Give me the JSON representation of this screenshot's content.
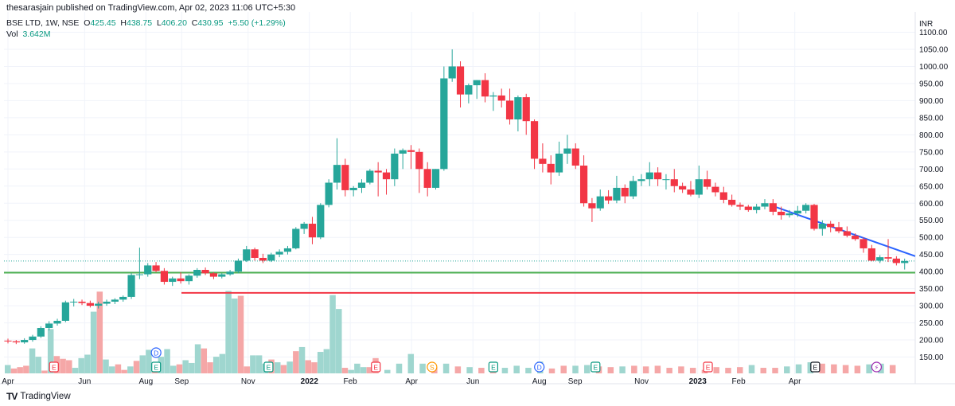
{
  "publisher_line": "thesarasjain published on TradingView.com, Apr 02, 2023 11:06 UTC+5:30",
  "legend": {
    "symbol": "BSE LTD, 1W, NSE",
    "O": "425.45",
    "H": "438.75",
    "L": "406.20",
    "C": "430.95",
    "change": "+5.50 (+1.29%)",
    "vol_label": "Vol",
    "vol_value": "3.642M"
  },
  "footer": {
    "logo": "TV",
    "brand": "TradingView"
  },
  "colors": {
    "up": "#26a69a",
    "down": "#f23645",
    "upVol": "#9fd6cf",
    "downVol": "#f5a7a7",
    "support": "#4caf50",
    "resistance": "#f23645",
    "trend": "#2962ff"
  },
  "chart_data": {
    "type": "candlestick",
    "currency_label": "INR",
    "y_ticks": [
      "1100.00",
      "1050.00",
      "1000.00",
      "950.00",
      "900.00",
      "850.00",
      "800.00",
      "750.00",
      "700.00",
      "650.00",
      "600.00",
      "550.00",
      "500.00",
      "450.00",
      "400.00",
      "350.00",
      "300.00",
      "250.00",
      "200.00",
      "150.00"
    ],
    "ylim": [
      130,
      1110
    ],
    "x_labels": [
      "Apr",
      "Jun",
      "Aug",
      "Sep",
      "Nov",
      "2022",
      "Feb",
      "Apr",
      "Jun",
      "Aug",
      "Sep",
      "Nov",
      "2023",
      "Feb",
      "Apr"
    ],
    "x_label_weeks": [
      0,
      15,
      27,
      34,
      47,
      59,
      67,
      79,
      91,
      104,
      111,
      124,
      135,
      143,
      154
    ],
    "candles": [
      [
        198,
        204,
        190,
        196
      ],
      [
        196,
        200,
        188,
        193
      ],
      [
        193,
        205,
        189,
        200
      ],
      [
        200,
        215,
        195,
        210
      ],
      [
        210,
        240,
        206,
        235
      ],
      [
        235,
        255,
        228,
        248
      ],
      [
        248,
        262,
        242,
        256
      ],
      [
        256,
        315,
        252,
        310
      ],
      [
        310,
        320,
        298,
        312
      ],
      [
        312,
        318,
        302,
        308
      ],
      [
        308,
        315,
        295,
        300
      ],
      [
        300,
        312,
        292,
        306
      ],
      [
        306,
        318,
        300,
        312
      ],
      [
        312,
        322,
        305,
        318
      ],
      [
        318,
        330,
        312,
        326
      ],
      [
        326,
        395,
        320,
        390
      ],
      [
        390,
        470,
        378,
        392
      ],
      [
        392,
        425,
        385,
        418
      ],
      [
        418,
        428,
        398,
        402
      ],
      [
        402,
        410,
        362,
        370
      ],
      [
        370,
        385,
        358,
        380
      ],
      [
        380,
        398,
        365,
        372
      ],
      [
        372,
        392,
        362,
        388
      ],
      [
        388,
        410,
        382,
        405
      ],
      [
        405,
        412,
        390,
        395
      ],
      [
        395,
        398,
        378,
        385
      ],
      [
        385,
        395,
        380,
        392
      ],
      [
        392,
        405,
        388,
        400
      ],
      [
        400,
        438,
        395,
        432
      ],
      [
        432,
        475,
        428,
        465
      ],
      [
        465,
        470,
        432,
        440
      ],
      [
        440,
        452,
        425,
        432
      ],
      [
        432,
        455,
        428,
        450
      ],
      [
        450,
        465,
        442,
        458
      ],
      [
        458,
        475,
        450,
        468
      ],
      [
        468,
        530,
        465,
        525
      ],
      [
        525,
        545,
        510,
        540
      ],
      [
        540,
        560,
        480,
        500
      ],
      [
        500,
        600,
        495,
        595
      ],
      [
        595,
        670,
        588,
        660
      ],
      [
        660,
        790,
        640,
        712
      ],
      [
        712,
        730,
        620,
        638
      ],
      [
        638,
        650,
        620,
        645
      ],
      [
        645,
        670,
        630,
        660
      ],
      [
        660,
        700,
        655,
        695
      ],
      [
        695,
        720,
        620,
        690
      ],
      [
        690,
        700,
        625,
        670
      ],
      [
        670,
        760,
        650,
        745
      ],
      [
        745,
        760,
        700,
        755
      ],
      [
        755,
        770,
        700,
        750
      ],
      [
        750,
        760,
        630,
        700
      ],
      [
        700,
        720,
        620,
        645
      ],
      [
        645,
        700,
        640,
        700
      ],
      [
        700,
        1000,
        695,
        965
      ],
      [
        965,
        1050,
        955,
        1000
      ],
      [
        1000,
        1015,
        880,
        918
      ],
      [
        918,
        950,
        892,
        945
      ],
      [
        945,
        960,
        905,
        960
      ],
      [
        960,
        980,
        895,
        912
      ],
      [
        912,
        925,
        870,
        915
      ],
      [
        915,
        935,
        880,
        900
      ],
      [
        900,
        935,
        830,
        845
      ],
      [
        845,
        915,
        810,
        910
      ],
      [
        910,
        920,
        800,
        840
      ],
      [
        840,
        845,
        700,
        730
      ],
      [
        730,
        775,
        690,
        715
      ],
      [
        715,
        740,
        655,
        690
      ],
      [
        690,
        780,
        680,
        745
      ],
      [
        745,
        800,
        715,
        760
      ],
      [
        760,
        775,
        700,
        710
      ],
      [
        710,
        740,
        590,
        600
      ],
      [
        600,
        615,
        545,
        585
      ],
      [
        585,
        640,
        578,
        620
      ],
      [
        620,
        638,
        598,
        608
      ],
      [
        608,
        680,
        600,
        645
      ],
      [
        645,
        655,
        600,
        620
      ],
      [
        620,
        680,
        612,
        665
      ],
      [
        665,
        685,
        650,
        670
      ],
      [
        670,
        720,
        650,
        690
      ],
      [
        690,
        705,
        650,
        670
      ],
      [
        670,
        685,
        640,
        670
      ],
      [
        670,
        700,
        632,
        650
      ],
      [
        650,
        660,
        630,
        640
      ],
      [
        640,
        665,
        620,
        625
      ],
      [
        625,
        710,
        615,
        670
      ],
      [
        670,
        695,
        640,
        648
      ],
      [
        648,
        660,
        620,
        632
      ],
      [
        632,
        648,
        600,
        610
      ],
      [
        610,
        625,
        590,
        595
      ],
      [
        595,
        602,
        580,
        590
      ],
      [
        590,
        595,
        575,
        580
      ],
      [
        580,
        598,
        570,
        590
      ],
      [
        590,
        612,
        582,
        600
      ],
      [
        600,
        612,
        565,
        575
      ],
      [
        575,
        590,
        552,
        565
      ],
      [
        565,
        580,
        558,
        570
      ],
      [
        570,
        592,
        560,
        578
      ],
      [
        578,
        600,
        570,
        595
      ],
      [
        595,
        598,
        520,
        525
      ],
      [
        525,
        550,
        505,
        540
      ],
      [
        540,
        548,
        515,
        530
      ],
      [
        530,
        545,
        512,
        518
      ],
      [
        518,
        532,
        500,
        505
      ],
      [
        505,
        512,
        490,
        495
      ],
      [
        495,
        500,
        455,
        468
      ],
      [
        468,
        478,
        430,
        432
      ],
      [
        432,
        448,
        425,
        442
      ],
      [
        442,
        495,
        428,
        438
      ],
      [
        438,
        445,
        418,
        425
      ],
      [
        425,
        438,
        406,
        430.95
      ]
    ],
    "volume": [
      [
        1,
        12
      ],
      [
        0,
        7
      ],
      [
        0,
        9
      ],
      [
        0,
        11
      ],
      [
        1,
        36
      ],
      [
        1,
        24
      ],
      [
        0,
        4
      ],
      [
        1,
        64
      ],
      [
        0,
        25
      ],
      [
        0,
        21
      ],
      [
        0,
        19
      ],
      [
        1,
        8
      ],
      [
        1,
        22
      ],
      [
        1,
        27
      ],
      [
        1,
        89
      ],
      [
        0,
        118
      ],
      [
        1,
        20
      ],
      [
        1,
        10
      ],
      [
        0,
        13
      ],
      [
        0,
        5
      ],
      [
        1,
        10
      ],
      [
        0,
        18
      ],
      [
        1,
        26
      ],
      [
        1,
        34
      ],
      [
        0,
        12
      ],
      [
        1,
        24
      ],
      [
        1,
        35
      ],
      [
        1,
        11
      ],
      [
        0,
        13
      ],
      [
        1,
        19
      ],
      [
        1,
        15
      ],
      [
        1,
        42
      ],
      [
        0,
        36
      ],
      [
        0,
        16
      ],
      [
        1,
        24
      ],
      [
        1,
        28
      ],
      [
        1,
        119
      ],
      [
        1,
        108
      ],
      [
        0,
        112
      ],
      [
        0,
        10
      ],
      [
        1,
        26
      ],
      [
        1,
        26
      ],
      [
        1,
        14
      ],
      [
        0,
        20
      ],
      [
        1,
        16
      ],
      [
        0,
        12
      ],
      [
        1,
        17
      ],
      [
        0,
        32
      ],
      [
        1,
        38
      ],
      [
        0,
        19
      ],
      [
        0,
        16
      ],
      [
        1,
        31
      ],
      [
        1,
        35
      ],
      [
        1,
        113
      ],
      [
        1,
        93
      ],
      [
        0,
        8
      ],
      [
        1,
        5
      ],
      [
        1,
        14
      ],
      [
        1,
        9
      ],
      [
        0,
        9
      ],
      [
        0,
        22
      ],
      [
        1,
        5
      ],
      [
        1,
        14
      ],
      [
        1,
        28
      ],
      [
        1,
        14
      ],
      [
        0,
        9
      ],
      [
        1,
        14
      ],
      [
        0,
        10
      ],
      [
        1,
        9
      ],
      [
        0,
        8
      ],
      [
        0,
        10
      ],
      [
        1,
        8
      ],
      [
        1,
        11
      ],
      [
        1,
        8
      ],
      [
        1,
        17
      ],
      [
        0,
        7
      ],
      [
        0,
        11
      ],
      [
        1,
        11
      ],
      [
        1,
        12
      ],
      [
        0,
        10
      ],
      [
        0,
        9
      ],
      [
        1,
        10
      ],
      [
        0,
        11
      ],
      [
        0,
        10
      ],
      [
        0,
        11
      ],
      [
        0,
        8
      ],
      [
        0,
        10
      ],
      [
        0,
        8
      ],
      [
        0,
        5
      ],
      [
        0,
        9
      ],
      [
        0,
        8
      ],
      [
        0,
        9
      ],
      [
        1,
        12
      ],
      [
        0,
        8
      ],
      [
        0,
        8
      ],
      [
        1,
        10
      ],
      [
        1,
        13
      ],
      [
        1,
        16
      ],
      [
        0,
        14
      ],
      [
        0,
        13
      ],
      [
        0,
        12
      ],
      [
        0,
        11
      ],
      [
        1,
        13
      ],
      [
        1,
        14
      ],
      [
        0,
        12
      ]
    ],
    "events": [
      {
        "week": 9,
        "letter": "E",
        "kind": "earnings-down"
      },
      {
        "week": 29,
        "letter": "D",
        "kind": "dividend"
      },
      {
        "week": 29,
        "letter": "E",
        "kind": "earnings-up"
      },
      {
        "week": 51,
        "letter": "E",
        "kind": "earnings-up"
      },
      {
        "week": 72,
        "letter": "E",
        "kind": "earnings-down"
      },
      {
        "week": 83,
        "letter": "S",
        "kind": "split"
      },
      {
        "week": 95,
        "letter": "E",
        "kind": "earnings-up"
      },
      {
        "week": 104,
        "letter": "D",
        "kind": "dividend"
      },
      {
        "week": 115,
        "letter": "E",
        "kind": "earnings-up"
      },
      {
        "week": 137,
        "letter": "E",
        "kind": "earnings-down"
      },
      {
        "week": 158,
        "letter": "E",
        "kind": "earnings-neutral"
      },
      {
        "week": 170,
        "letter": "⚡",
        "kind": "upcoming"
      }
    ],
    "support_level": 397,
    "resistance_level": 340,
    "trendline": {
      "start_week": 145,
      "start_price": 592,
      "end_price": 445
    },
    "last_close_line": 430.95,
    "grid": true,
    "legend_position": "top-left"
  }
}
